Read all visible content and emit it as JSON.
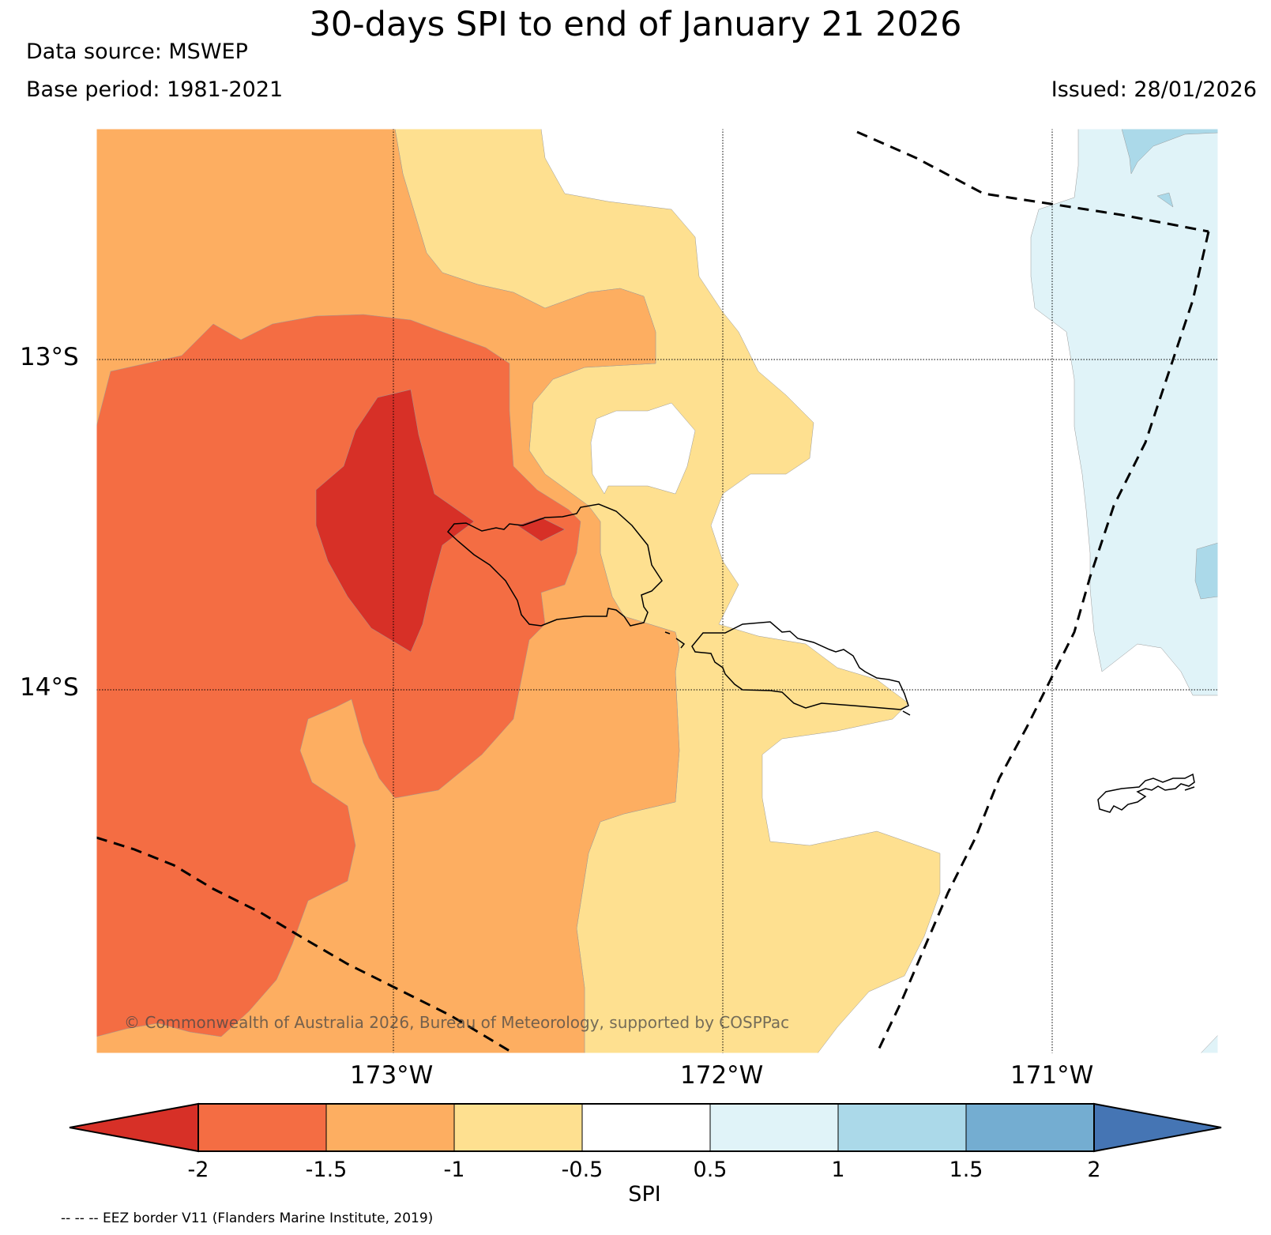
{
  "header": {
    "title": "30-days SPI to end of January 21 2026",
    "data_source": "Data source: MSWEP",
    "base_period": "Base period: 1981-2021",
    "issued": "Issued: 28/01/2026"
  },
  "map": {
    "lat_labels": [
      "13°S",
      "14°S"
    ],
    "lon_labels": [
      "173°W",
      "172°W",
      "171°W"
    ],
    "copyright": "© Commonwealth of Australia 2026, Bureau of Meteorology, supported by COSPPac"
  },
  "colorbar": {
    "label": "SPI",
    "ticks": [
      "-2",
      "-1.5",
      "-1",
      "-0.5",
      "0.5",
      "1",
      "1.5",
      "2"
    ],
    "colors": {
      "below_-2": "#d73027",
      "-2_-1.5": "#f46d43",
      "-1.5_-1": "#fdae61",
      "-1_-0.5": "#fee090",
      "-0.5_0.5": "#ffffff",
      "0.5_1": "#e0f3f8",
      "1_1.5": "#abd9e9",
      "1.5_2": "#74add1",
      "above_2": "#4575b4"
    }
  },
  "footnote": "-- -- -- EEZ border V11 (Flanders Marine Institute, 2019)"
}
